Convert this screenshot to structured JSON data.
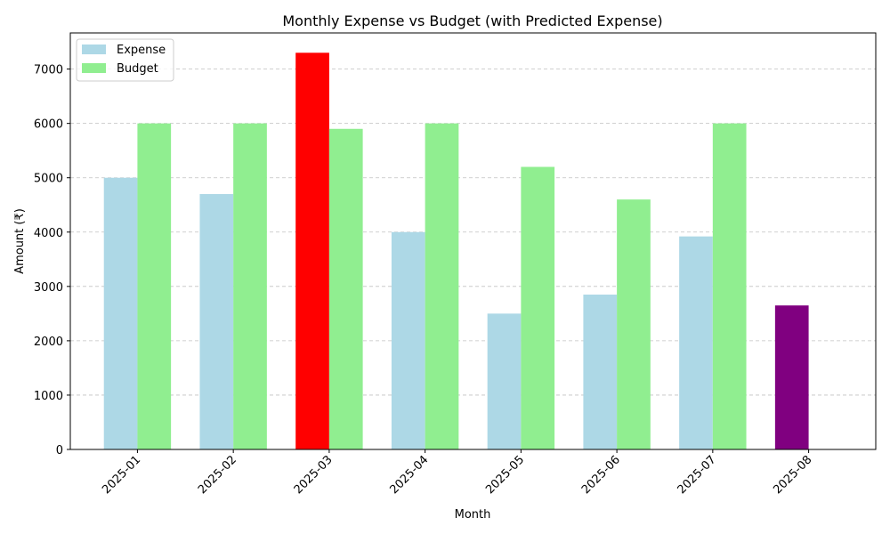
{
  "chart_data": {
    "type": "bar",
    "title": "Monthly Expense vs Budget (with Predicted Expense)",
    "xlabel": "Month",
    "ylabel": "Amount (₹)",
    "categories": [
      "2025-01",
      "2025-02",
      "2025-03",
      "2025-04",
      "2025-05",
      "2025-06",
      "2025-07",
      "2025-08"
    ],
    "series": [
      {
        "name": "Expense",
        "color": "#add8e6",
        "values": [
          5000,
          4700,
          7300,
          4000,
          2500,
          2850,
          3920,
          2650
        ],
        "bar_colors": [
          "#add8e6",
          "#add8e6",
          "#ff0000",
          "#add8e6",
          "#add8e6",
          "#add8e6",
          "#add8e6",
          "#800080"
        ]
      },
      {
        "name": "Budget",
        "color": "#90ee90",
        "values": [
          6000,
          6000,
          5900,
          6000,
          5200,
          4600,
          6000,
          0
        ]
      }
    ],
    "ylim": [
      0,
      7665
    ],
    "yticks": [
      0,
      1000,
      2000,
      3000,
      4000,
      5000,
      6000,
      7000
    ],
    "grid": "y-dashed",
    "legend_position": "upper-left",
    "tick_rotation": 45
  }
}
